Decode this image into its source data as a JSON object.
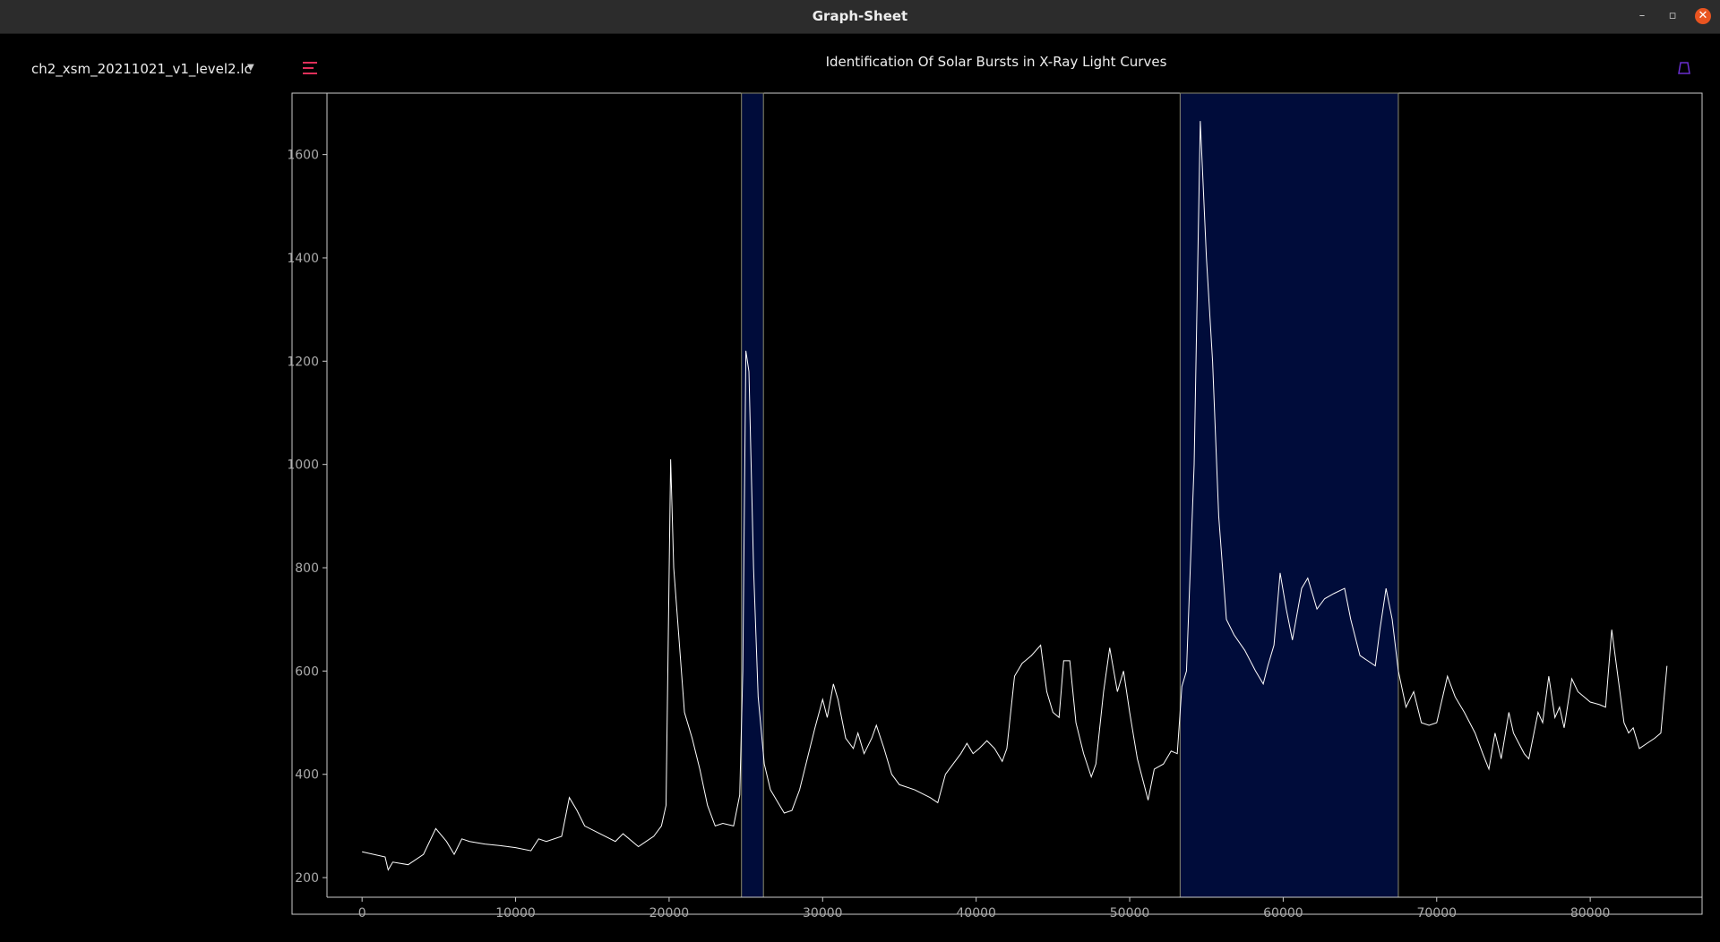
{
  "window": {
    "title": "Graph-Sheet"
  },
  "sidebar": {
    "file": "ch2_xsm_20211021_v1_level2.lc"
  },
  "chart_data": {
    "type": "line",
    "title": "Identification Of Solar Bursts in X-Ray Light Curves",
    "color": "#ffffff",
    "x": [
      0,
      1500,
      1700,
      2000,
      3000,
      4000,
      4800,
      5500,
      6000,
      6500,
      7000,
      8000,
      9000,
      10000,
      11000,
      11500,
      12000,
      13000,
      13500,
      14000,
      14500,
      15500,
      16500,
      17000,
      18000,
      18500,
      19000,
      19500,
      19800,
      20100,
      20300,
      20600,
      21000,
      21500,
      22000,
      22500,
      23000,
      23500,
      24200,
      24600,
      24800,
      25000,
      25200,
      25500,
      25800,
      26200,
      26600,
      27000,
      27500,
      28000,
      28500,
      29000,
      29500,
      30000,
      30300,
      30700,
      31000,
      31500,
      32000,
      32300,
      32700,
      33200,
      33500,
      34000,
      34500,
      35000,
      36000,
      37000,
      37500,
      38000,
      38500,
      39000,
      39400,
      39800,
      40200,
      40700,
      41200,
      41700,
      42000,
      42500,
      43000,
      43600,
      44200,
      44600,
      45000,
      45400,
      45700,
      46100,
      46500,
      47000,
      47500,
      47800,
      48300,
      48700,
      49200,
      49600,
      50000,
      50500,
      51200,
      51600,
      52200,
      52700,
      53100,
      53400,
      53700,
      54200,
      54600,
      55000,
      55400,
      55800,
      56300,
      56800,
      57500,
      58200,
      58700,
      59000,
      59400,
      59800,
      60200,
      60600,
      61200,
      61600,
      62200,
      62700,
      63300,
      64000,
      64400,
      65000,
      66000,
      66300,
      66700,
      67100,
      67500,
      68000,
      68500,
      69000,
      69500,
      70000,
      70700,
      71200,
      71800,
      72500,
      73000,
      73400,
      73800,
      74200,
      74700,
      75000,
      75700,
      76000,
      76600,
      76900,
      77300,
      77700,
      78000,
      78300,
      78800,
      79200,
      80000,
      80600,
      81000,
      81400,
      81800,
      82200,
      82500,
      82800,
      83200,
      83700,
      84200,
      84600,
      85000
    ],
    "values": [
      250,
      240,
      215,
      230,
      225,
      245,
      295,
      270,
      245,
      275,
      270,
      265,
      262,
      258,
      252,
      275,
      270,
      280,
      355,
      330,
      300,
      285,
      270,
      285,
      260,
      270,
      280,
      300,
      340,
      1010,
      800,
      680,
      520,
      470,
      410,
      340,
      300,
      305,
      300,
      360,
      600,
      1220,
      1180,
      800,
      550,
      420,
      370,
      350,
      325,
      330,
      370,
      430,
      490,
      545,
      510,
      575,
      545,
      470,
      450,
      480,
      440,
      470,
      495,
      450,
      400,
      380,
      370,
      355,
      345,
      400,
      420,
      440,
      460,
      440,
      450,
      465,
      450,
      425,
      450,
      590,
      615,
      630,
      650,
      560,
      520,
      510,
      620,
      620,
      500,
      440,
      395,
      420,
      560,
      645,
      560,
      600,
      520,
      430,
      350,
      410,
      420,
      445,
      440,
      570,
      600,
      1000,
      1665,
      1400,
      1200,
      900,
      700,
      670,
      640,
      600,
      575,
      610,
      650,
      790,
      720,
      660,
      760,
      780,
      720,
      740,
      750,
      760,
      700,
      630,
      610,
      680,
      760,
      700,
      600,
      530,
      560,
      500,
      495,
      500,
      590,
      550,
      520,
      480,
      440,
      410,
      480,
      430,
      520,
      480,
      440,
      430,
      520,
      500,
      590,
      510,
      530,
      490,
      585,
      560,
      540,
      535,
      530,
      680,
      590,
      500,
      480,
      490,
      450,
      460,
      470,
      480,
      610
    ],
    "highlight_regions": [
      [
        24714,
        26143
      ],
      [
        53286,
        67500
      ]
    ],
    "highlight_color": "#000c3a",
    "xlim": [
      -2286,
      87286
    ],
    "ylim": [
      162,
      1719
    ],
    "xticks": [
      0,
      10000,
      20000,
      30000,
      40000,
      50000,
      60000,
      70000,
      80000
    ],
    "yticks": [
      200,
      400,
      600,
      800,
      1000,
      1200,
      1400,
      1600
    ]
  }
}
